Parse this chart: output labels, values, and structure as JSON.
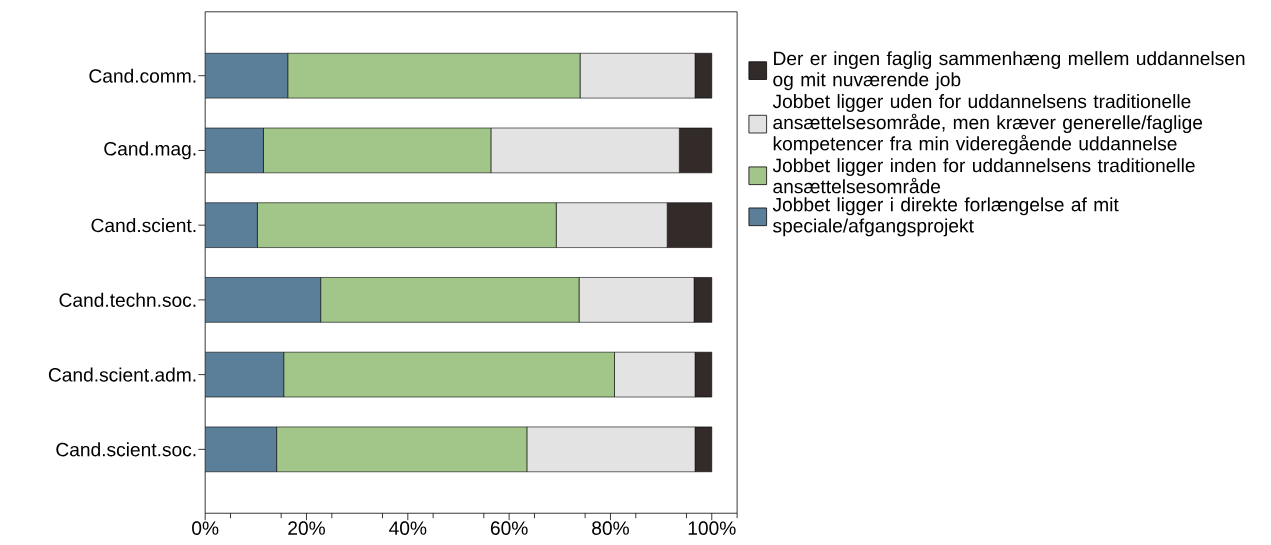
{
  "chart_data": {
    "type": "bar",
    "orientation": "horizontal",
    "stacked": true,
    "categories": [
      "Cand.comm.",
      "Cand.mag.",
      "Cand.scient.",
      "Cand.techn.soc.",
      "Cand.scient.adm.",
      "Cand.scient.soc."
    ],
    "series": [
      {
        "name": "Jobbet ligger i direkte forlængelse af mit speciale/afgangsprojekt",
        "color": "#5b7f99",
        "values": [
          16.3,
          11.5,
          10.3,
          22.8,
          15.5,
          14.1
        ]
      },
      {
        "name": "Jobbet ligger inden for uddannelsens traditionelle ansættelsesområde",
        "color": "#a2c589",
        "values": [
          57.7,
          44.9,
          59.0,
          51.0,
          65.3,
          49.4
        ]
      },
      {
        "name": "Jobbet ligger uden for uddannelsens traditionelle ansættelsesområde, men kræver generelle/faglige kompetencer fra min videregående uddannelse",
        "color": "#e3e3e3",
        "values": [
          22.7,
          37.2,
          21.9,
          22.7,
          15.9,
          33.2
        ]
      },
      {
        "name": "Der er ingen faglig sammenhæng mellem uddannelsen og mit nuværende job",
        "color": "#332a2a",
        "values": [
          3.3,
          6.4,
          8.8,
          3.5,
          3.3,
          3.3
        ]
      }
    ],
    "xlim": [
      0,
      105
    ],
    "xticks": [
      {
        "value": 0,
        "label": "0%"
      },
      {
        "value": 5,
        "label": null
      },
      {
        "value": 15,
        "label": null
      },
      {
        "value": 20,
        "label": "20%"
      },
      {
        "value": 25,
        "label": null
      },
      {
        "value": 35,
        "label": null
      },
      {
        "value": 40,
        "label": "40%"
      },
      {
        "value": 45,
        "label": null
      },
      {
        "value": 55,
        "label": null
      },
      {
        "value": 60,
        "label": "60%"
      },
      {
        "value": 65,
        "label": null
      },
      {
        "value": 75,
        "label": null
      },
      {
        "value": 80,
        "label": "80%"
      },
      {
        "value": 85,
        "label": null
      },
      {
        "value": 95,
        "label": null
      },
      {
        "value": 100,
        "label": "100%"
      },
      {
        "value": 105,
        "label": null
      }
    ],
    "legend": "right"
  }
}
